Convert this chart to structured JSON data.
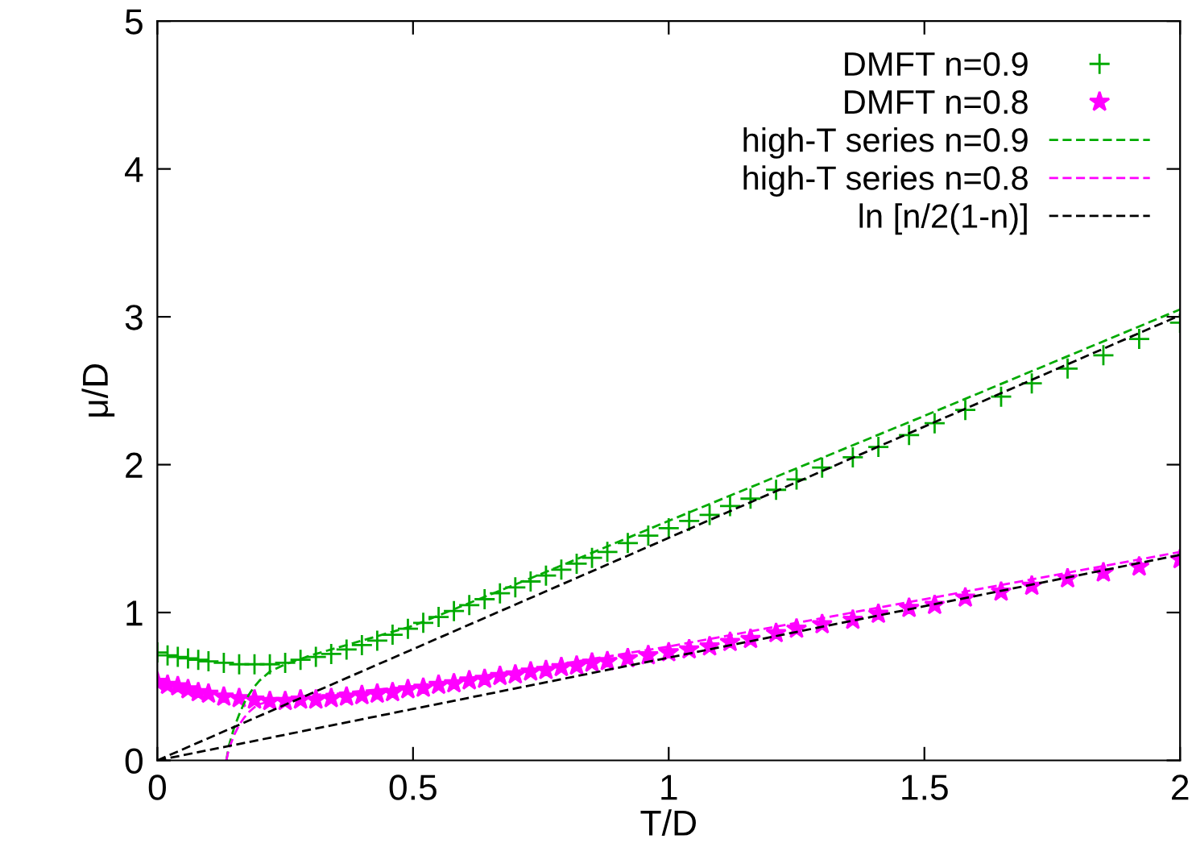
{
  "chart_data": {
    "type": "scatter",
    "xlabel": "T/D",
    "ylabel": "μ/D",
    "xlim": [
      0,
      2
    ],
    "ylim": [
      0,
      5
    ],
    "xticks": [
      0,
      0.5,
      1,
      1.5,
      2
    ],
    "yticks": [
      0,
      1,
      2,
      3,
      4,
      5
    ],
    "grid": false,
    "legend": "top right",
    "series": [
      {
        "name": "DMFT n=0.9",
        "marker": "cross",
        "color": "#00aa00",
        "x": [
          0,
          0.02,
          0.04,
          0.06,
          0.08,
          0.1,
          0.13,
          0.16,
          0.19,
          0.22,
          0.25,
          0.28,
          0.31,
          0.34,
          0.37,
          0.4,
          0.43,
          0.46,
          0.49,
          0.52,
          0.55,
          0.58,
          0.61,
          0.64,
          0.67,
          0.7,
          0.73,
          0.76,
          0.79,
          0.82,
          0.85,
          0.88,
          0.92,
          0.96,
          1.0,
          1.04,
          1.08,
          1.12,
          1.16,
          1.21,
          1.25,
          1.3,
          1.36,
          1.41,
          1.47,
          1.52,
          1.58,
          1.65,
          1.71,
          1.78,
          1.85,
          1.92,
          2.0
        ],
        "values": [
          0.73,
          0.71,
          0.7,
          0.69,
          0.68,
          0.67,
          0.66,
          0.65,
          0.65,
          0.65,
          0.66,
          0.68,
          0.7,
          0.72,
          0.75,
          0.78,
          0.81,
          0.85,
          0.89,
          0.93,
          0.97,
          1.01,
          1.05,
          1.09,
          1.13,
          1.17,
          1.21,
          1.25,
          1.29,
          1.33,
          1.37,
          1.41,
          1.47,
          1.52,
          1.57,
          1.62,
          1.66,
          1.72,
          1.77,
          1.83,
          1.9,
          1.98,
          2.05,
          2.12,
          2.2,
          2.28,
          2.37,
          2.46,
          2.55,
          2.65,
          2.74,
          2.85,
          2.96
        ]
      },
      {
        "name": "DMFT n=0.8",
        "marker": "star",
        "color": "#ff00ff",
        "x": [
          0,
          0.02,
          0.04,
          0.06,
          0.08,
          0.1,
          0.13,
          0.16,
          0.19,
          0.22,
          0.25,
          0.28,
          0.31,
          0.34,
          0.37,
          0.4,
          0.43,
          0.46,
          0.49,
          0.52,
          0.55,
          0.58,
          0.61,
          0.64,
          0.67,
          0.7,
          0.73,
          0.76,
          0.79,
          0.82,
          0.85,
          0.88,
          0.92,
          0.96,
          1.0,
          1.04,
          1.08,
          1.12,
          1.16,
          1.21,
          1.25,
          1.3,
          1.36,
          1.41,
          1.47,
          1.52,
          1.58,
          1.65,
          1.71,
          1.78,
          1.85,
          1.92,
          2.0
        ],
        "values": [
          0.53,
          0.51,
          0.5,
          0.48,
          0.46,
          0.45,
          0.43,
          0.42,
          0.41,
          0.4,
          0.4,
          0.41,
          0.41,
          0.42,
          0.43,
          0.44,
          0.45,
          0.46,
          0.48,
          0.49,
          0.51,
          0.52,
          0.54,
          0.55,
          0.57,
          0.58,
          0.6,
          0.61,
          0.63,
          0.64,
          0.66,
          0.67,
          0.69,
          0.71,
          0.73,
          0.75,
          0.77,
          0.8,
          0.82,
          0.86,
          0.89,
          0.92,
          0.95,
          0.99,
          1.03,
          1.05,
          1.1,
          1.14,
          1.18,
          1.23,
          1.27,
          1.31,
          1.36
        ]
      },
      {
        "name": "high-T series n=0.9",
        "type": "line",
        "line_style": "dashed",
        "color": "#00aa00",
        "x": [
          0.135,
          0.14,
          0.15,
          0.16,
          0.17,
          0.18,
          0.19,
          0.2,
          0.22,
          0.25,
          0.3,
          0.4,
          0.5,
          0.75,
          1,
          1.5,
          2
        ],
        "values": [
          0,
          0.1,
          0.22,
          0.31,
          0.39,
          0.45,
          0.5,
          0.54,
          0.6,
          0.65,
          0.71,
          0.81,
          0.91,
          1.26,
          1.62,
          2.33,
          3.05
        ]
      },
      {
        "name": "high-T series n=0.8",
        "type": "line",
        "line_style": "dashed",
        "color": "#ff00ff",
        "x": [
          0.135,
          0.14,
          0.15,
          0.16,
          0.17,
          0.18,
          0.19,
          0.2,
          0.22,
          0.25,
          0.3,
          0.4,
          0.5,
          0.75,
          1,
          1.5,
          2
        ],
        "values": [
          0,
          0.08,
          0.17,
          0.24,
          0.29,
          0.33,
          0.36,
          0.38,
          0.4,
          0.42,
          0.44,
          0.47,
          0.5,
          0.63,
          0.77,
          1.09,
          1.41
        ]
      },
      {
        "name": "ln [n/2(1-n)]",
        "type": "line",
        "line_style": "dashed",
        "color": "#000000",
        "x": [
          0,
          2
        ],
        "values": [
          0,
          3.01
        ]
      },
      {
        "type": "line",
        "line_style": "dashed",
        "color": "#000000",
        "x": [
          0,
          2
        ],
        "values": [
          0,
          1.39
        ]
      }
    ]
  }
}
